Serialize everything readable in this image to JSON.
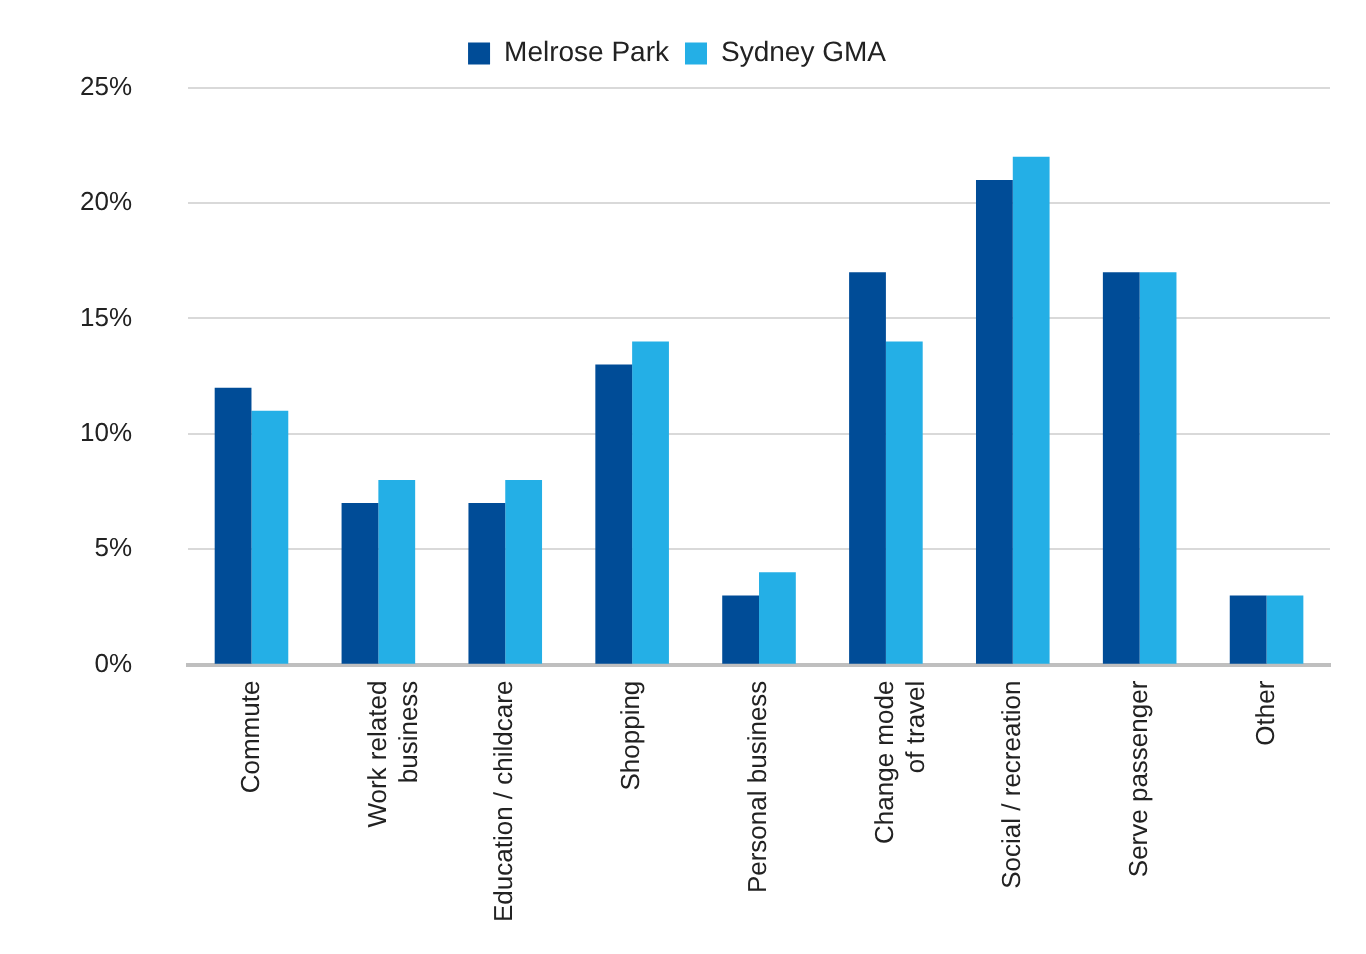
{
  "chart_data": {
    "type": "bar",
    "categories": [
      "Commute",
      "Work related\nbusiness",
      "Education / childcare",
      "Shopping",
      "Personal business",
      "Change mode\nof travel",
      "Social / recreation",
      "Serve passenger",
      "Other"
    ],
    "series": [
      {
        "name": "Melrose Park",
        "color": "#004c97",
        "values": [
          12,
          7,
          7,
          13,
          3,
          17,
          21,
          17,
          3
        ]
      },
      {
        "name": "Sydney GMA",
        "color": "#24afe6",
        "values": [
          11,
          8,
          8,
          14,
          4,
          14,
          22,
          17,
          3
        ]
      }
    ],
    "ylim": [
      0,
      25
    ],
    "yticks": [
      {
        "value": 0,
        "label": "0%"
      },
      {
        "value": 5,
        "label": "5%"
      },
      {
        "value": 10,
        "label": "10%"
      },
      {
        "value": 15,
        "label": "15%"
      },
      {
        "value": 20,
        "label": "20%"
      },
      {
        "value": 25,
        "label": "25%"
      }
    ],
    "grid": "y",
    "legend": "top"
  }
}
